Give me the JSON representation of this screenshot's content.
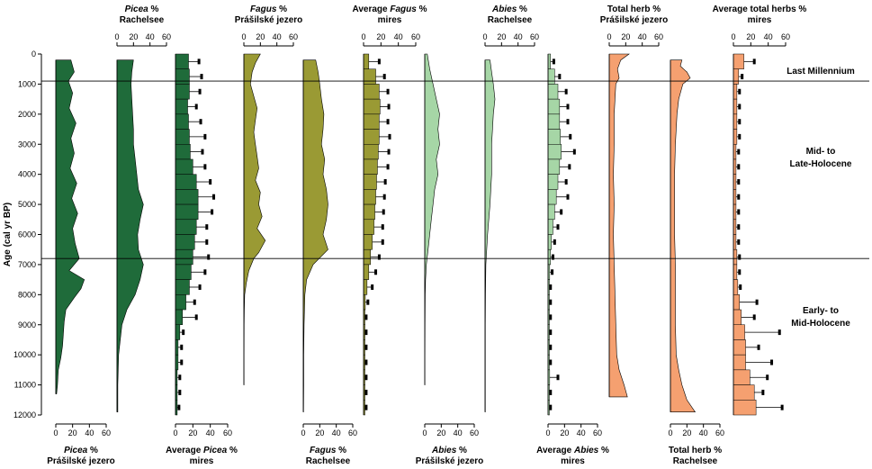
{
  "colors": {
    "picea": "#1f6b3a",
    "fagus": "#9a9a34",
    "abies": "#a6d6a6",
    "herb": "#f5a070"
  },
  "yaxis": {
    "label": "Age (cal yr BP)",
    "ticks": [
      "0",
      "1000",
      "2000",
      "3000",
      "4000",
      "5000",
      "6000",
      "7000",
      "8000",
      "9000",
      "10000",
      "11000",
      "12000"
    ]
  },
  "zones": [
    {
      "label": "Last Millennium",
      "y": 900
    },
    {
      "label": "Mid- to",
      "label2": "Late-Holocene",
      "y": 6800
    },
    {
      "label": "Early- to",
      "label2": "Mid-Holocene"
    }
  ],
  "chart_data": {
    "type": "area",
    "ylabel": "Age (cal yr BP)",
    "ylim": [
      0,
      12000
    ],
    "panels": [
      {
        "id": "picea-pras",
        "title_i": "Picea",
        "title_r": " %",
        "subtitle": "Prášilské jezero",
        "axis": "bottom",
        "kind": "curve",
        "color": "picea",
        "ticks": [
          "0",
          "20",
          "40",
          "60"
        ],
        "xmax": 60,
        "age": [
          200,
          600,
          900,
          1300,
          1800,
          2300,
          2800,
          3300,
          3800,
          4300,
          4800,
          5300,
          5800,
          6300,
          6800,
          7200,
          7500,
          7800,
          8100,
          8500,
          8900,
          9300,
          9700,
          10100,
          10500,
          11000,
          11300
        ],
        "values": [
          18,
          22,
          15,
          20,
          16,
          24,
          18,
          22,
          17,
          25,
          19,
          26,
          20,
          23,
          28,
          16,
          34,
          30,
          22,
          12,
          10,
          9,
          8,
          6,
          3,
          2,
          1
        ]
      },
      {
        "id": "picea-rach",
        "title_i": "Picea",
        "title_r": " %",
        "subtitle": "Rachelsee",
        "axis": "top",
        "kind": "curve",
        "color": "picea",
        "ticks": [
          "0",
          "20",
          "40",
          "60"
        ],
        "xmax": 60,
        "age": [
          200,
          600,
          1000,
          1500,
          2000,
          2500,
          3000,
          3500,
          4000,
          4500,
          5000,
          5500,
          6000,
          6500,
          7000,
          7500,
          8000,
          8500,
          9000,
          10000,
          11000,
          11900
        ],
        "values": [
          20,
          18,
          17,
          18,
          19,
          20,
          20,
          22,
          24,
          26,
          32,
          28,
          25,
          26,
          32,
          28,
          22,
          12,
          6,
          2,
          1,
          1
        ]
      },
      {
        "id": "picea-mires",
        "title": "Average ",
        "title_i": "Picea",
        "title_r": " %",
        "subtitle": "mires",
        "axis": "bottom",
        "kind": "bar",
        "color": "picea",
        "ticks": [
          "0",
          "20",
          "40",
          "60"
        ],
        "xmax": 60,
        "age": [
          250,
          750,
          1250,
          1750,
          2250,
          2750,
          3250,
          3750,
          4250,
          4750,
          5250,
          5750,
          6250,
          6750,
          7250,
          7750,
          8250,
          8750,
          9250,
          9750,
          10250,
          10750,
          11250,
          11750
        ],
        "values": [
          15,
          16,
          16,
          14,
          15,
          16,
          17,
          20,
          24,
          26,
          26,
          24,
          22,
          20,
          18,
          16,
          12,
          8,
          5,
          3,
          3,
          2,
          2,
          2
        ],
        "errors": [
          12,
          14,
          12,
          10,
          14,
          18,
          14,
          14,
          16,
          18,
          16,
          12,
          14,
          18,
          16,
          12,
          10,
          16,
          4,
          4,
          4,
          3,
          3,
          2
        ]
      },
      {
        "id": "fagus-pras",
        "title_i": "Fagus",
        "title_r": " %",
        "subtitle": "Prášilské jezero",
        "axis": "top",
        "kind": "curve",
        "color": "fagus",
        "ticks": [
          "0",
          "20",
          "40",
          "60"
        ],
        "xmax": 60,
        "age": [
          0,
          300,
          600,
          1000,
          1400,
          1800,
          2200,
          2600,
          3000,
          3400,
          3800,
          4200,
          4600,
          5000,
          5400,
          5800,
          6200,
          6600,
          6800,
          7200,
          7600,
          8000,
          8500,
          9000,
          10000,
          11000
        ],
        "values": [
          20,
          14,
          10,
          8,
          12,
          16,
          14,
          12,
          14,
          16,
          18,
          14,
          20,
          18,
          22,
          16,
          26,
          18,
          12,
          6,
          3,
          1,
          0.5,
          0.3,
          0.2,
          0.2
        ]
      },
      {
        "id": "fagus-rach",
        "title_i": "Fagus",
        "title_r": " %",
        "subtitle": "Rachelsee",
        "axis": "bottom",
        "kind": "curve",
        "color": "fagus",
        "ticks": [
          "0",
          "20",
          "40",
          "60"
        ],
        "xmax": 60,
        "age": [
          200,
          600,
          1000,
          1500,
          2000,
          2500,
          3000,
          3500,
          4000,
          4500,
          5000,
          5500,
          6000,
          6500,
          7000,
          7500,
          8000,
          9000,
          10000,
          11000,
          11900
        ],
        "values": [
          15,
          18,
          20,
          22,
          25,
          24,
          22,
          26,
          24,
          28,
          30,
          28,
          24,
          30,
          12,
          4,
          2,
          1,
          0.5,
          0.5,
          0.3
        ]
      },
      {
        "id": "fagus-mires",
        "title": "Average ",
        "title_i": "Fagus",
        "title_r": " %",
        "subtitle": "mires",
        "axis": "top",
        "kind": "bar",
        "color": "fagus",
        "ticks": [
          "0",
          "20",
          "40",
          "60"
        ],
        "xmax": 60,
        "age": [
          250,
          750,
          1250,
          1750,
          2250,
          2750,
          3250,
          3750,
          4250,
          4750,
          5250,
          5750,
          6250,
          6750,
          7250,
          7750,
          8250,
          8750,
          9250,
          9750,
          10250,
          10750,
          11250,
          11750
        ],
        "values": [
          6,
          14,
          18,
          19,
          18,
          18,
          17,
          16,
          15,
          14,
          13,
          12,
          10,
          8,
          6,
          4,
          2,
          1,
          1,
          1,
          1,
          1,
          1,
          1
        ],
        "errors": [
          12,
          10,
          10,
          10,
          10,
          12,
          12,
          12,
          10,
          10,
          10,
          10,
          12,
          10,
          8,
          6,
          3,
          2,
          2,
          2,
          2,
          2,
          2,
          2
        ]
      },
      {
        "id": "abies-pras",
        "title_i": "Abies",
        "title_r": " %",
        "subtitle": "Prášilské jezero",
        "axis": "bottom",
        "kind": "curve",
        "color": "abies",
        "ticks": [
          "0",
          "20",
          "40",
          "60"
        ],
        "xmax": 60,
        "age": [
          0,
          500,
          1000,
          1500,
          2000,
          2500,
          3000,
          3500,
          4000,
          4500,
          5000,
          5500,
          6000,
          6500,
          7000,
          7500,
          8000,
          9000,
          10000,
          11000
        ],
        "values": [
          3,
          6,
          10,
          14,
          18,
          16,
          18,
          14,
          16,
          12,
          10,
          8,
          6,
          4,
          2,
          1,
          0.5,
          0.3,
          0.2,
          0.2
        ]
      },
      {
        "id": "abies-rach",
        "title_i": "Abies",
        "title_r": " %",
        "subtitle": "Rachelsee",
        "axis": "top",
        "kind": "curve",
        "color": "abies",
        "ticks": [
          "0",
          "20",
          "40",
          "60"
        ],
        "xmax": 60,
        "age": [
          200,
          600,
          1000,
          1500,
          2000,
          2500,
          3000,
          3500,
          4000,
          4500,
          5000,
          6000,
          7000,
          8000,
          9000,
          10000,
          11000,
          11900
        ],
        "values": [
          6,
          8,
          10,
          12,
          10,
          9,
          8,
          8,
          8,
          7,
          6,
          3,
          1,
          0.5,
          0.3,
          0.3,
          0.3,
          0.3
        ]
      },
      {
        "id": "abies-mires",
        "title": "Average ",
        "title_i": "Abies",
        "title_r": " %",
        "subtitle": "mires",
        "axis": "bottom",
        "kind": "bar",
        "color": "abies",
        "ticks": [
          "0",
          "20",
          "40",
          "60"
        ],
        "xmax": 60,
        "age": [
          250,
          750,
          1250,
          1750,
          2250,
          2750,
          3250,
          3750,
          4250,
          4750,
          5250,
          5750,
          6250,
          6750,
          7250,
          7750,
          8250,
          8750,
          9250,
          9750,
          10250,
          10750,
          11250,
          11750
        ],
        "values": [
          3,
          8,
          12,
          14,
          14,
          15,
          16,
          14,
          12,
          10,
          8,
          6,
          4,
          3,
          2,
          1,
          1,
          1,
          1,
          1,
          1,
          2,
          1,
          1
        ],
        "errors": [
          4,
          6,
          10,
          10,
          10,
          12,
          16,
          12,
          10,
          14,
          8,
          6,
          4,
          3,
          3,
          2,
          2,
          2,
          2,
          2,
          2,
          10,
          2,
          2
        ]
      },
      {
        "id": "herb-pras",
        "title": "Total herb %",
        "subtitle": "Prášilské jezero",
        "axis": "top",
        "kind": "curve",
        "color": "herb",
        "ticks": [
          "0",
          "20",
          "40",
          "60"
        ],
        "xmax": 60,
        "age": [
          0,
          200,
          500,
          800,
          1000,
          1500,
          2000,
          3000,
          4000,
          5000,
          6000,
          7000,
          8000,
          9000,
          10000,
          10500,
          11000,
          11400
        ],
        "values": [
          24,
          14,
          10,
          12,
          8,
          7,
          6,
          6,
          5,
          6,
          5,
          6,
          7,
          8,
          9,
          12,
          18,
          22
        ]
      },
      {
        "id": "herb-rach",
        "title": "Total herb %",
        "subtitle": "Rachelsee",
        "axis": "bottom",
        "kind": "curve",
        "color": "herb",
        "ticks": [
          "0",
          "20",
          "40",
          "60"
        ],
        "xmax": 60,
        "age": [
          200,
          400,
          600,
          800,
          1000,
          1500,
          2000,
          3000,
          4000,
          5000,
          6000,
          7000,
          8000,
          9000,
          10000,
          10500,
          11000,
          11500,
          11900
        ],
        "values": [
          14,
          12,
          20,
          24,
          15,
          10,
          8,
          6,
          5,
          5,
          5,
          6,
          6,
          6,
          7,
          10,
          14,
          20,
          30
        ]
      },
      {
        "id": "herb-mires",
        "title": "Average total herbs %",
        "subtitle": "mires",
        "axis": "top",
        "kind": "bar",
        "color": "herb",
        "ticks": [
          "0",
          "20",
          "40",
          "60"
        ],
        "xmax": 60,
        "age": [
          250,
          750,
          1250,
          1750,
          2250,
          2750,
          3250,
          3750,
          4250,
          4750,
          5250,
          5750,
          6250,
          6750,
          7250,
          7750,
          8250,
          8750,
          9250,
          9750,
          10250,
          10750,
          11250,
          11750
        ],
        "values": [
          12,
          6,
          4,
          4,
          4,
          4,
          3,
          3,
          3,
          3,
          3,
          3,
          3,
          4,
          4,
          5,
          7,
          9,
          13,
          14,
          14,
          19,
          24,
          26
        ],
        "errors": [
          12,
          4,
          3,
          3,
          3,
          3,
          3,
          3,
          3,
          3,
          3,
          3,
          3,
          3,
          3,
          3,
          20,
          15,
          40,
          15,
          30,
          20,
          10,
          30
        ]
      }
    ]
  }
}
